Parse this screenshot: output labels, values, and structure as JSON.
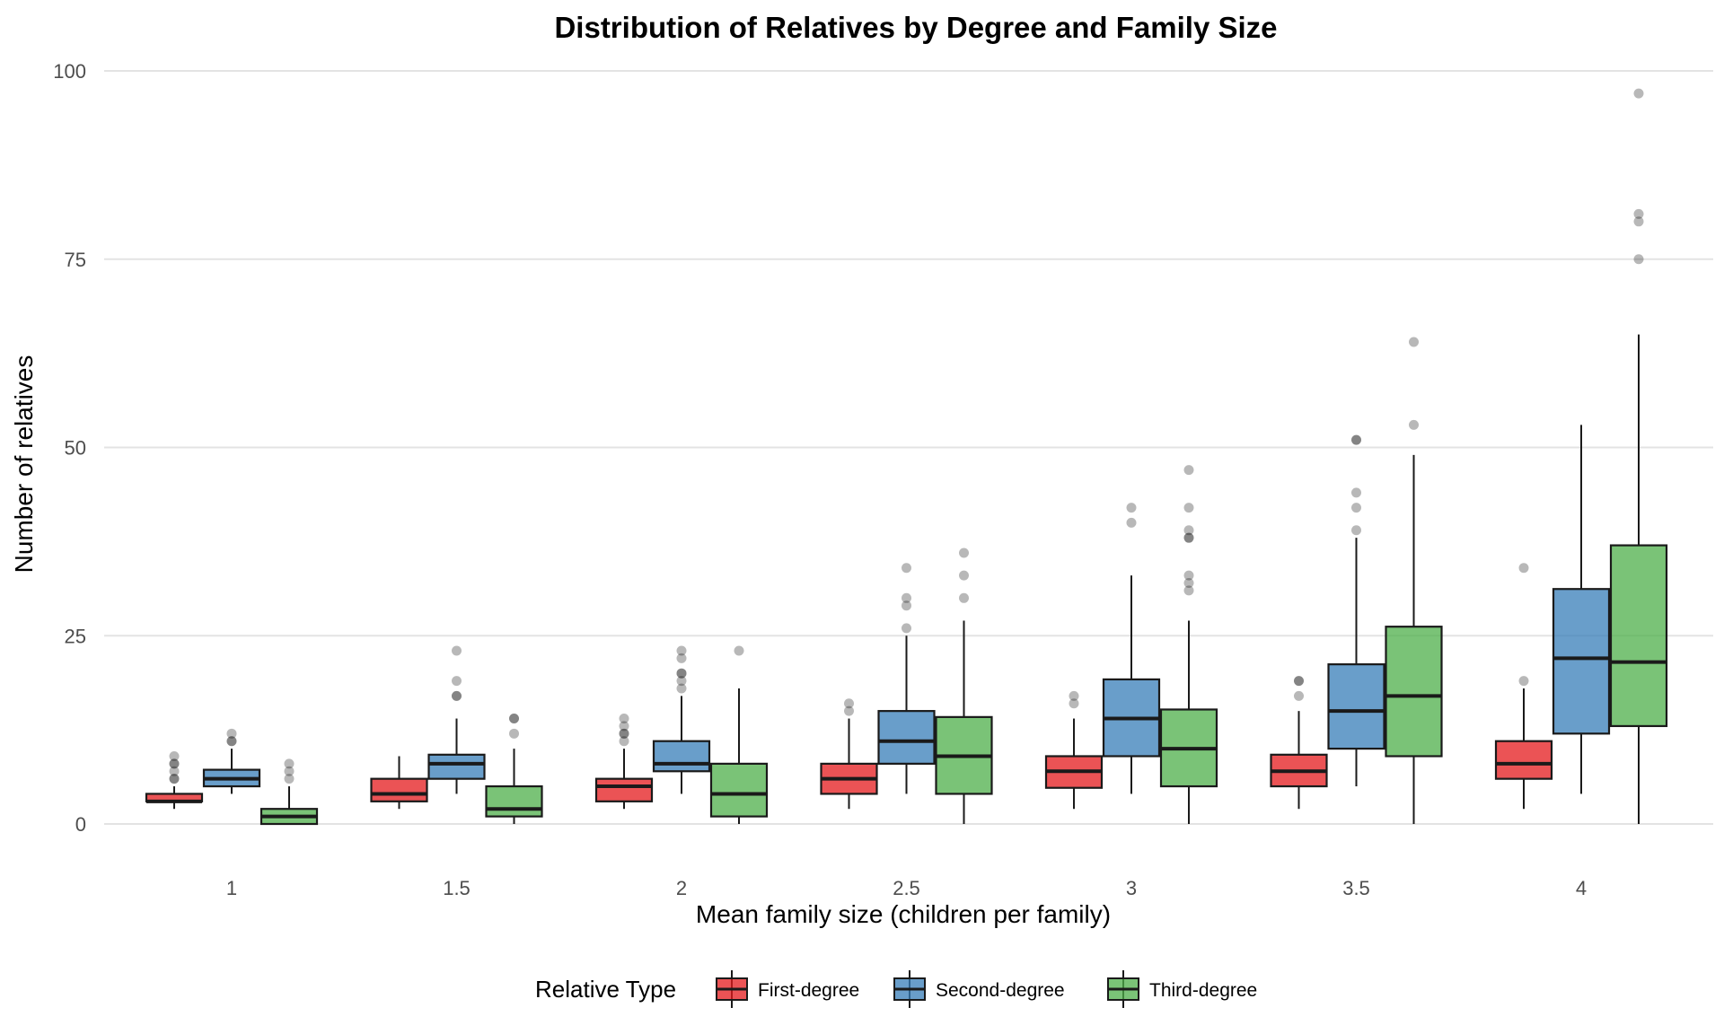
{
  "chart_data": {
    "type": "boxplot",
    "title": "Distribution of Relatives by Degree and Family Size",
    "xlabel": "Mean family size (children per family)",
    "ylabel": "Number of relatives",
    "categories": [
      "1",
      "1.5",
      "2",
      "2.5",
      "3",
      "3.5",
      "4"
    ],
    "yticks": [
      0,
      25,
      50,
      75,
      100
    ],
    "ylim": [
      -4,
      102
    ],
    "grid": "horizontal",
    "legend": {
      "title": "Relative Type",
      "position": "bottom"
    },
    "series": [
      {
        "name": "First-degree",
        "color": "#E41A1C",
        "boxes": [
          {
            "min": 2,
            "q1": 3,
            "median": 3,
            "q3": 4,
            "max": 5,
            "outliers": [
              6,
              6,
              7,
              8,
              8,
              9
            ]
          },
          {
            "min": 2,
            "q1": 3,
            "median": 4,
            "q3": 6,
            "max": 9,
            "outliers": []
          },
          {
            "min": 2,
            "q1": 3,
            "median": 5,
            "q3": 6,
            "max": 10,
            "outliers": [
              11,
              12,
              12,
              13,
              14
            ]
          },
          {
            "min": 2,
            "q1": 4,
            "median": 6,
            "q3": 8,
            "max": 14,
            "outliers": [
              15,
              16
            ]
          },
          {
            "min": 2,
            "q1": 4.8,
            "median": 7,
            "q3": 9,
            "max": 14,
            "outliers": [
              16,
              17
            ]
          },
          {
            "min": 2,
            "q1": 5,
            "median": 7,
            "q3": 9.2,
            "max": 15,
            "outliers": [
              17,
              19,
              19
            ]
          },
          {
            "min": 2,
            "q1": 6,
            "median": 8,
            "q3": 11,
            "max": 18,
            "outliers": [
              19,
              34
            ]
          }
        ]
      },
      {
        "name": "Second-degree",
        "color": "#377EB8",
        "boxes": [
          {
            "min": 4,
            "q1": 5,
            "median": 6,
            "q3": 7.2,
            "max": 10,
            "outliers": [
              11,
              11,
              12
            ]
          },
          {
            "min": 4,
            "q1": 6,
            "median": 8,
            "q3": 9.2,
            "max": 14,
            "outliers": [
              17,
              17,
              19,
              23
            ]
          },
          {
            "min": 4,
            "q1": 7,
            "median": 8,
            "q3": 11,
            "max": 17,
            "outliers": [
              18,
              19,
              20,
              20,
              22,
              23
            ]
          },
          {
            "min": 4,
            "q1": 8,
            "median": 11,
            "q3": 15,
            "max": 25,
            "outliers": [
              26,
              29,
              30,
              34
            ]
          },
          {
            "min": 4,
            "q1": 9,
            "median": 14,
            "q3": 19.2,
            "max": 33,
            "outliers": [
              40,
              42
            ]
          },
          {
            "min": 5,
            "q1": 10,
            "median": 15,
            "q3": 21.2,
            "max": 38,
            "outliers": [
              39,
              42,
              44,
              51,
              51
            ]
          },
          {
            "min": 4,
            "q1": 12,
            "median": 22,
            "q3": 31.2,
            "max": 53,
            "outliers": []
          }
        ]
      },
      {
        "name": "Third-degree",
        "color": "#4DAF4A",
        "boxes": [
          {
            "min": 0,
            "q1": 0,
            "median": 1,
            "q3": 2,
            "max": 5,
            "outliers": [
              6,
              7,
              8
            ]
          },
          {
            "min": 0,
            "q1": 1,
            "median": 2,
            "q3": 5,
            "max": 10,
            "outliers": [
              12,
              14,
              14
            ]
          },
          {
            "min": 0,
            "q1": 1,
            "median": 4,
            "q3": 8,
            "max": 18,
            "outliers": [
              23
            ]
          },
          {
            "min": 0,
            "q1": 4,
            "median": 9,
            "q3": 14.2,
            "max": 27,
            "outliers": [
              30,
              33,
              36
            ]
          },
          {
            "min": 0,
            "q1": 5,
            "median": 10,
            "q3": 15.2,
            "max": 27,
            "outliers": [
              31,
              32,
              33,
              38,
              38,
              39,
              42,
              47
            ]
          },
          {
            "min": 0,
            "q1": 9,
            "median": 17,
            "q3": 26.2,
            "max": 49,
            "outliers": [
              53,
              64
            ]
          },
          {
            "min": 0,
            "q1": 13,
            "median": 21.5,
            "q3": 37,
            "max": 65,
            "outliers": [
              75,
              80,
              81,
              97
            ]
          }
        ]
      }
    ]
  }
}
